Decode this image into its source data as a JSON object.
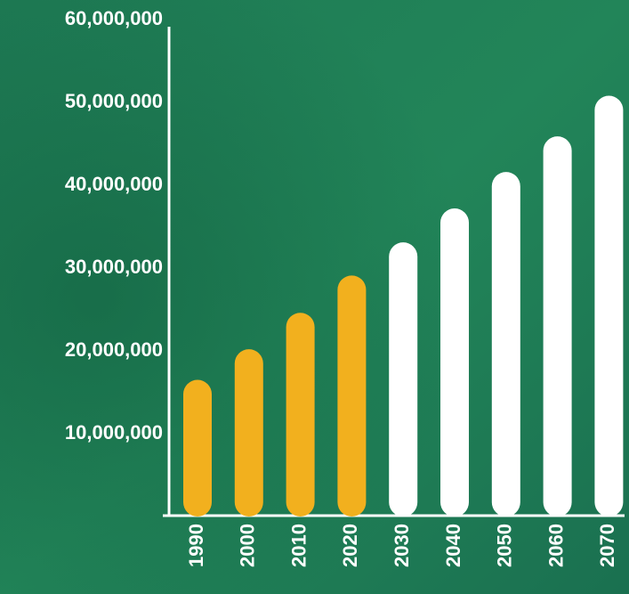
{
  "chart_data": {
    "type": "bar",
    "categories": [
      "1990",
      "2000",
      "2010",
      "2020",
      "2030",
      "2040",
      "2050",
      "2060",
      "2070"
    ],
    "values": [
      16500000,
      20200000,
      24600000,
      29100000,
      33100000,
      37200000,
      41600000,
      45900000,
      50800000
    ],
    "colors": [
      "#f2b01e",
      "#f2b01e",
      "#f2b01e",
      "#f2b01e",
      "#ffffff",
      "#ffffff",
      "#ffffff",
      "#ffffff",
      "#ffffff"
    ],
    "ylim": [
      0,
      60000000
    ],
    "yticks": [
      {
        "value": 10000000,
        "label": "10,000,000"
      },
      {
        "value": 20000000,
        "label": "20,000,000"
      },
      {
        "value": 30000000,
        "label": "30,000,000"
      },
      {
        "value": 40000000,
        "label": "40,000,000"
      },
      {
        "value": 50000000,
        "label": "50,000,000"
      },
      {
        "value": 60000000,
        "label": "60,000,000"
      }
    ],
    "grid": false
  }
}
